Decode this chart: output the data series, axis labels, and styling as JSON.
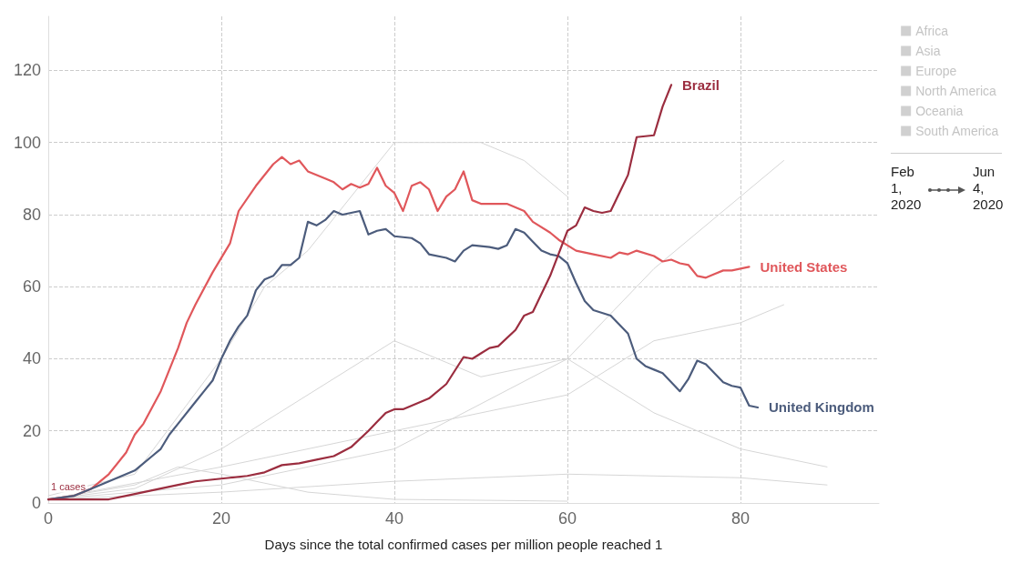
{
  "chart_data": {
    "type": "line",
    "xlabel": "Days since the total confirmed cases per million people reached 1",
    "xlim": [
      0,
      96
    ],
    "xticks": [
      0,
      20,
      40,
      60,
      80
    ],
    "ylim": [
      0,
      135
    ],
    "yticks": [
      0,
      20,
      40,
      60,
      80,
      100,
      120
    ],
    "grid": true,
    "legend": "top right",
    "line_style": "solid",
    "annotations": [
      "Feb 1, 2020",
      "Jun 4, 2020",
      {
        "text": "1 cases",
        "x": 0,
        "y": 1
      }
    ],
    "series": [
      {
        "name": "Africa",
        "color": "#d6d6d6",
        "x": [
          0,
          20,
          40,
          60,
          80,
          90
        ],
        "values": [
          1,
          3,
          6,
          8,
          7,
          5
        ]
      },
      {
        "name": "Asia",
        "color": "#d6d6d6",
        "x": [
          0,
          10,
          20,
          30,
          40,
          50,
          60,
          70,
          80,
          90
        ],
        "values": [
          1,
          4,
          15,
          30,
          45,
          35,
          40,
          25,
          15,
          10
        ]
      },
      {
        "name": "Europe",
        "color": "#d6d6d6",
        "x": [
          0,
          10,
          20,
          25,
          30,
          40,
          50,
          55,
          60
        ],
        "values": [
          2,
          8,
          40,
          60,
          70,
          100,
          100,
          95,
          85
        ]
      },
      {
        "name": "North America",
        "color": "#d6d6d6",
        "x": [
          0,
          20,
          40,
          60,
          70,
          80,
          85
        ],
        "values": [
          1,
          10,
          20,
          30,
          45,
          50,
          55
        ]
      },
      {
        "name": "Oceania",
        "color": "#d6d6d6",
        "x": [
          0,
          10,
          15,
          20,
          30,
          40,
          60
        ],
        "values": [
          1,
          5,
          10,
          8,
          3,
          1,
          0.5
        ]
      },
      {
        "name": "South America",
        "color": "#d6d6d6",
        "x": [
          0,
          20,
          40,
          60,
          70,
          80,
          85
        ],
        "values": [
          1,
          5,
          15,
          40,
          65,
          85,
          95
        ]
      },
      {
        "name": "United States",
        "color": "#e0575b",
        "x": [
          0,
          3,
          5,
          7,
          9,
          10,
          11,
          13,
          15,
          16,
          17,
          19,
          21,
          22,
          24,
          26,
          27,
          28,
          29,
          30,
          32,
          33,
          34,
          35,
          36,
          37,
          38,
          39,
          40,
          41,
          42,
          43,
          44,
          45,
          46,
          47,
          48,
          49,
          50,
          51,
          53,
          55,
          56,
          58,
          59,
          61,
          63,
          65,
          66,
          67,
          68,
          70,
          71,
          72,
          73,
          74,
          75,
          76,
          77,
          78,
          79,
          80,
          81
        ],
        "values": [
          1,
          2,
          4,
          8,
          14,
          19,
          22,
          31,
          43,
          50,
          55,
          64,
          72,
          81,
          88,
          94,
          96,
          94,
          95,
          92,
          90,
          89,
          87,
          88.5,
          87.5,
          88.5,
          93,
          88,
          86,
          81,
          88,
          89,
          87,
          81,
          85,
          87,
          92,
          84,
          83,
          83,
          83,
          81,
          78,
          75,
          73,
          70,
          69,
          68,
          69.5,
          69,
          70,
          68.5,
          67,
          67.5,
          66.5,
          66,
          63,
          62.5,
          63.5,
          64.5,
          64.5,
          65,
          65.5
        ]
      },
      {
        "name": "United Kingdom",
        "color": "#4c5c7c",
        "x": [
          0,
          3,
          5,
          7,
          9,
          10,
          12,
          13,
          14,
          15,
          17,
          18,
          19,
          20,
          21,
          22,
          23,
          24,
          25,
          26,
          27,
          28,
          29,
          30,
          31,
          32,
          33,
          34,
          35,
          36,
          37,
          38,
          39,
          40,
          42,
          43,
          44,
          46,
          47,
          48,
          49,
          51,
          52,
          53,
          54,
          55,
          56,
          57,
          58,
          59,
          60,
          61,
          62,
          63,
          65,
          67,
          68,
          69,
          70,
          71,
          73,
          74,
          75,
          76,
          78,
          79,
          80,
          81,
          82
        ],
        "values": [
          1,
          2,
          4,
          6,
          8,
          9,
          13,
          15,
          19,
          22,
          28,
          31,
          34,
          40,
          45,
          49,
          52,
          59,
          62,
          63,
          66,
          66,
          68,
          78,
          77,
          78.5,
          81,
          80,
          80.5,
          81,
          74.5,
          75.5,
          76,
          74,
          73.5,
          72,
          69,
          68,
          67,
          70,
          71.5,
          71,
          70.5,
          71.5,
          76,
          75,
          72.5,
          70,
          69,
          68.5,
          66.5,
          61,
          56,
          53.5,
          52,
          47,
          40,
          38,
          37,
          36,
          31,
          34.5,
          39.5,
          38.5,
          33.5,
          32.5,
          32,
          27,
          26.5
        ]
      },
      {
        "name": "Brazil",
        "color": "#9b2d3f",
        "x": [
          0,
          7,
          9,
          11,
          13,
          15,
          17,
          19,
          21,
          23,
          25,
          27,
          29,
          31,
          33,
          35,
          37,
          38,
          39,
          40,
          41,
          42,
          44,
          46,
          48,
          49,
          50,
          51,
          52,
          54,
          55,
          56,
          58,
          60,
          61,
          62,
          63,
          64,
          65,
          66,
          67,
          68,
          70,
          71,
          72
        ],
        "values": [
          1,
          1,
          2,
          3,
          4,
          5,
          6,
          6.5,
          7,
          7.5,
          8.5,
          10.5,
          11,
          12,
          13,
          15.5,
          20,
          22.5,
          25,
          26,
          26,
          27,
          29,
          33,
          40.5,
          40,
          41.5,
          43,
          43.5,
          48,
          52,
          53,
          63,
          75.5,
          77,
          82,
          81,
          80.5,
          81,
          86,
          91,
          101.5,
          102,
          110,
          116
        ]
      }
    ]
  }
}
